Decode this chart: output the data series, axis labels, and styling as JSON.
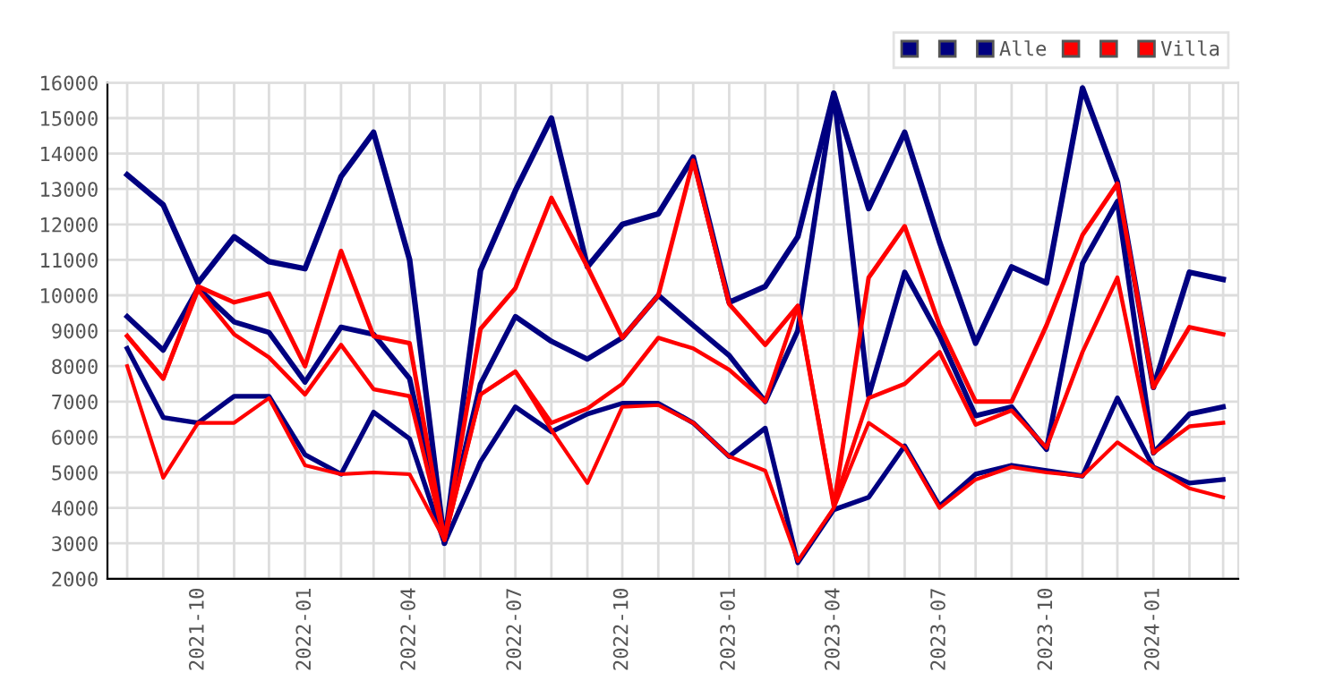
{
  "chart_data": {
    "type": "line",
    "x": [
      "2021-08",
      "2021-09",
      "2021-10",
      "2021-11",
      "2021-12",
      "2022-01",
      "2022-02",
      "2022-03",
      "2022-04",
      "2022-05",
      "2022-06",
      "2022-07",
      "2022-08",
      "2022-09",
      "2022-10",
      "2022-11",
      "2022-12",
      "2023-01",
      "2023-02",
      "2023-03",
      "2023-04",
      "2023-05",
      "2023-06",
      "2023-07",
      "2023-08",
      "2023-09",
      "2023-10",
      "2023-11",
      "2023-12",
      "2024-01",
      "2024-02",
      "2024-03"
    ],
    "series": [
      {
        "color": "#000080",
        "values": [
          13400,
          12550,
          10350,
          11650,
          10950,
          10750,
          13350,
          14600,
          11000,
          3000,
          10700,
          12950,
          15000,
          10800,
          12000,
          12300,
          13900,
          9800,
          10250,
          11650,
          15700,
          12450,
          14600,
          11500,
          8650,
          10800,
          10350,
          15850,
          13200,
          7400,
          10650,
          10450
        ]
      },
      {
        "color": "#000080",
        "values": [
          9400,
          8450,
          10200,
          9250,
          8950,
          7550,
          9100,
          8900,
          7650,
          3200,
          7500,
          9400,
          8700,
          8200,
          8800,
          10000,
          9150,
          8300,
          7000,
          9000,
          15700,
          7150,
          10650,
          8850,
          6600,
          6850,
          5650,
          10900,
          12650,
          5550,
          6650,
          6850
        ]
      },
      {
        "name": "Alle",
        "color": "#000080",
        "values": [
          8500,
          6550,
          6400,
          7150,
          7150,
          5500,
          4950,
          6700,
          5950,
          3000,
          5300,
          6850,
          6150,
          6650,
          6950,
          6950,
          6400,
          5450,
          6250,
          2450,
          3950,
          4300,
          5750,
          4050,
          4950,
          5200,
          5050,
          4900,
          7100,
          5150,
          4700,
          4800
        ]
      },
      {
        "color": "#ff0000",
        "values": [
          8850,
          7650,
          10250,
          9800,
          10050,
          8000,
          11250,
          8850,
          8650,
          3100,
          9050,
          10200,
          12750,
          10800,
          8800,
          10000,
          13800,
          9750,
          8600,
          9700,
          4050,
          10500,
          11950,
          9150,
          7000,
          7000,
          9150,
          11700,
          13150,
          7400,
          9100,
          8900
        ]
      },
      {
        "color": "#ff0000",
        "values": [
          8850,
          7650,
          10150,
          8900,
          8250,
          7200,
          8600,
          7350,
          7150,
          3100,
          7200,
          7850,
          6400,
          6800,
          7500,
          8800,
          8500,
          7900,
          7000,
          9700,
          4100,
          7100,
          7500,
          8400,
          6350,
          6750,
          5700,
          8400,
          10500,
          5550,
          6300,
          6400
        ]
      },
      {
        "name": "Villa",
        "color": "#ff0000",
        "values": [
          8000,
          4850,
          6400,
          6400,
          7100,
          5200,
          4950,
          5000,
          4950,
          3100,
          7200,
          7850,
          6200,
          4700,
          6850,
          6900,
          6400,
          5450,
          5050,
          2500,
          4000,
          6400,
          5700,
          4000,
          4800,
          5150,
          5000,
          4900,
          5850,
          5150,
          4550,
          4300
        ]
      }
    ],
    "xlim": [
      "2021-07-15",
      "2024-03-14"
    ],
    "xticks": [
      {
        "value": "2021-08",
        "label": null
      },
      {
        "value": "2021-09",
        "label": null
      },
      {
        "value": "2021-10",
        "label": "2021-10"
      },
      {
        "value": "2021-11",
        "label": null
      },
      {
        "value": "2021-12",
        "label": null
      },
      {
        "value": "2022-01",
        "label": "2022-01"
      },
      {
        "value": "2022-02",
        "label": null
      },
      {
        "value": "2022-03",
        "label": null
      },
      {
        "value": "2022-04",
        "label": "2022-04"
      },
      {
        "value": "2022-05",
        "label": null
      },
      {
        "value": "2022-06",
        "label": null
      },
      {
        "value": "2022-07",
        "label": "2022-07"
      },
      {
        "value": "2022-08",
        "label": null
      },
      {
        "value": "2022-09",
        "label": null
      },
      {
        "value": "2022-10",
        "label": "2022-10"
      },
      {
        "value": "2022-11",
        "label": null
      },
      {
        "value": "2022-12",
        "label": null
      },
      {
        "value": "2023-01",
        "label": "2023-01"
      },
      {
        "value": "2023-02",
        "label": null
      },
      {
        "value": "2023-03",
        "label": null
      },
      {
        "value": "2023-04",
        "label": "2023-04"
      },
      {
        "value": "2023-05",
        "label": null
      },
      {
        "value": "2023-06",
        "label": null
      },
      {
        "value": "2023-07",
        "label": "2023-07"
      },
      {
        "value": "2023-08",
        "label": null
      },
      {
        "value": "2023-09",
        "label": null
      },
      {
        "value": "2023-10",
        "label": "2023-10"
      },
      {
        "value": "2023-11",
        "label": null
      },
      {
        "value": "2023-12",
        "label": null
      },
      {
        "value": "2024-01",
        "label": "2024-01"
      },
      {
        "value": "2024-02",
        "label": null
      },
      {
        "value": "2024-03",
        "label": null
      }
    ],
    "ylim": [
      2000,
      16000
    ],
    "yticks": [
      2000,
      3000,
      4000,
      5000,
      6000,
      7000,
      8000,
      9000,
      10000,
      11000,
      12000,
      13000,
      14000,
      15000,
      16000
    ],
    "grid": true,
    "legend": "top right",
    "marker": "none",
    "line_style": "solid"
  }
}
